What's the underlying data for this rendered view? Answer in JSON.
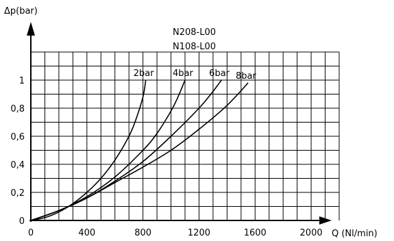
{
  "chart_data": {
    "type": "line",
    "title_lines": [
      "N208-L00",
      "N108-L00"
    ],
    "xlabel": "Q  (Nl/min)",
    "ylabel": "Δp(bar)",
    "xlim": [
      0,
      2200
    ],
    "ylim": [
      0,
      1.2
    ],
    "x_grid_step": 100,
    "y_grid_step": 0.1,
    "x_tick_values": [
      0,
      400,
      800,
      1200,
      1600,
      2000
    ],
    "x_tick_labels": [
      "0",
      "400",
      "800",
      "1200",
      "1600",
      "2000"
    ],
    "y_tick_values": [
      0,
      0.2,
      0.4,
      0.6,
      0.8,
      1.0
    ],
    "y_tick_labels": [
      "0",
      "0,2",
      "0,4",
      "0,6",
      "0,8",
      "1"
    ],
    "grid": true,
    "series": [
      {
        "name": "2bar",
        "x": [
          0,
          100,
          200,
          300,
          400,
          500,
          600,
          700,
          750,
          800,
          820
        ],
        "y": [
          0,
          0.02,
          0.06,
          0.12,
          0.2,
          0.3,
          0.43,
          0.6,
          0.72,
          0.88,
          1.0
        ]
      },
      {
        "name": "4bar",
        "x": [
          0,
          200,
          400,
          600,
          800,
          900,
          1000,
          1050,
          1100
        ],
        "y": [
          0,
          0.07,
          0.17,
          0.31,
          0.5,
          0.62,
          0.78,
          0.88,
          1.0
        ]
      },
      {
        "name": "6bar",
        "x": [
          0,
          200,
          400,
          600,
          800,
          1000,
          1200,
          1300,
          1360
        ],
        "y": [
          0,
          0.07,
          0.16,
          0.28,
          0.42,
          0.6,
          0.8,
          0.92,
          1.0
        ]
      },
      {
        "name": "8bar",
        "x": [
          0,
          200,
          400,
          600,
          800,
          1000,
          1200,
          1400,
          1550
        ],
        "y": [
          0,
          0.07,
          0.16,
          0.27,
          0.38,
          0.5,
          0.65,
          0.82,
          0.98
        ]
      }
    ]
  }
}
